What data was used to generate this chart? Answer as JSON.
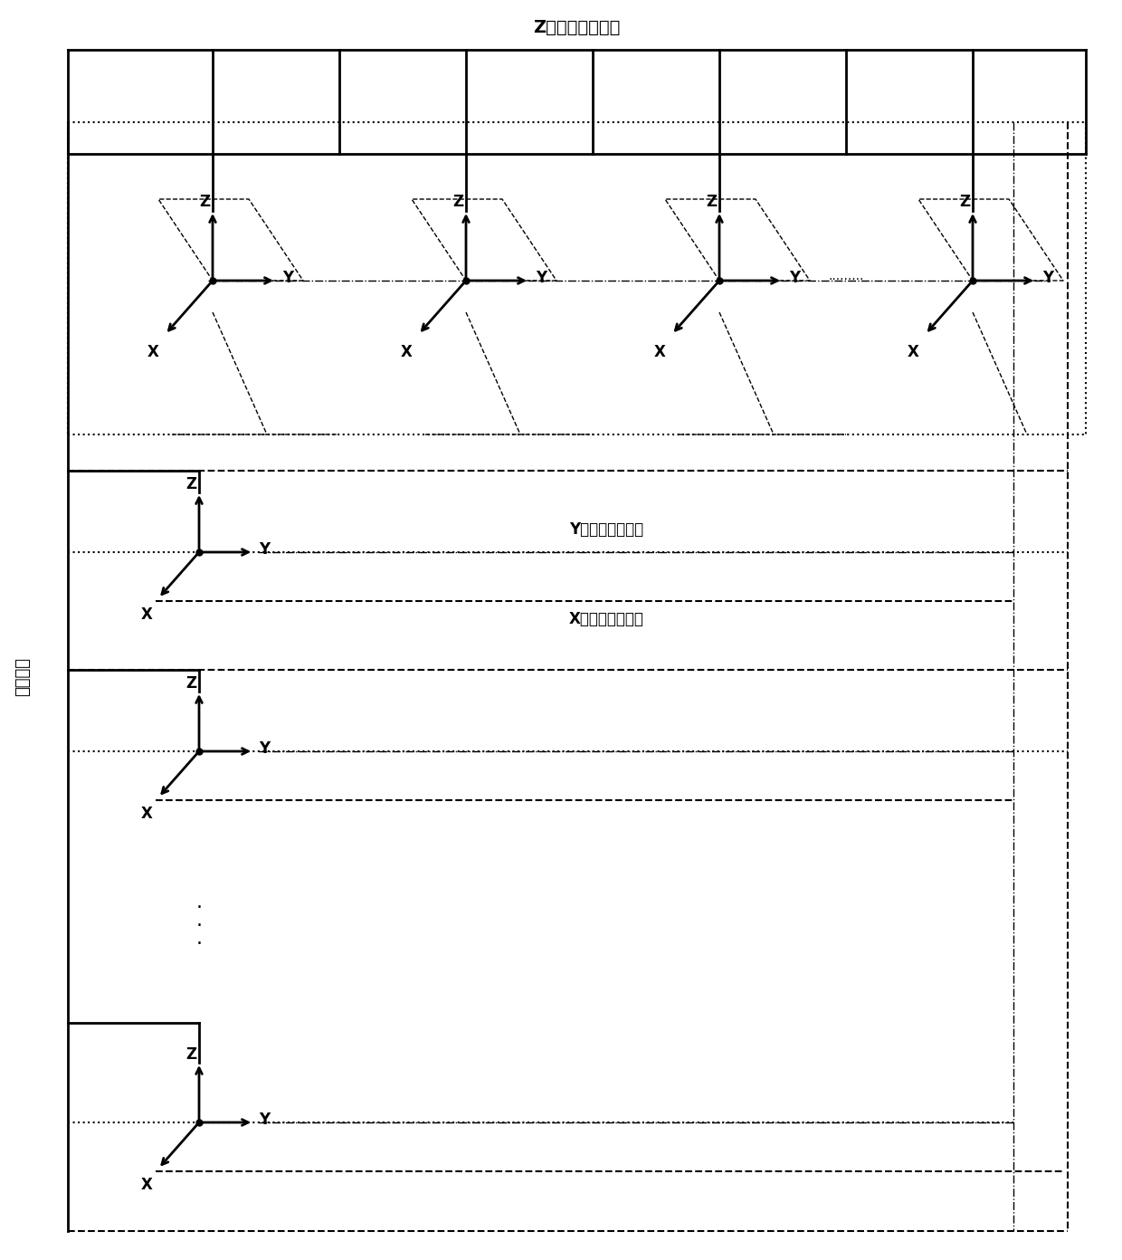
{
  "title_top": "Z轴方向声速子阵",
  "label_left": "声压子阵",
  "label_y_subarray": "Y轴方向声速子阵",
  "label_x_subarray": "X轴方向声速子阵",
  "bg_color": "#ffffff"
}
